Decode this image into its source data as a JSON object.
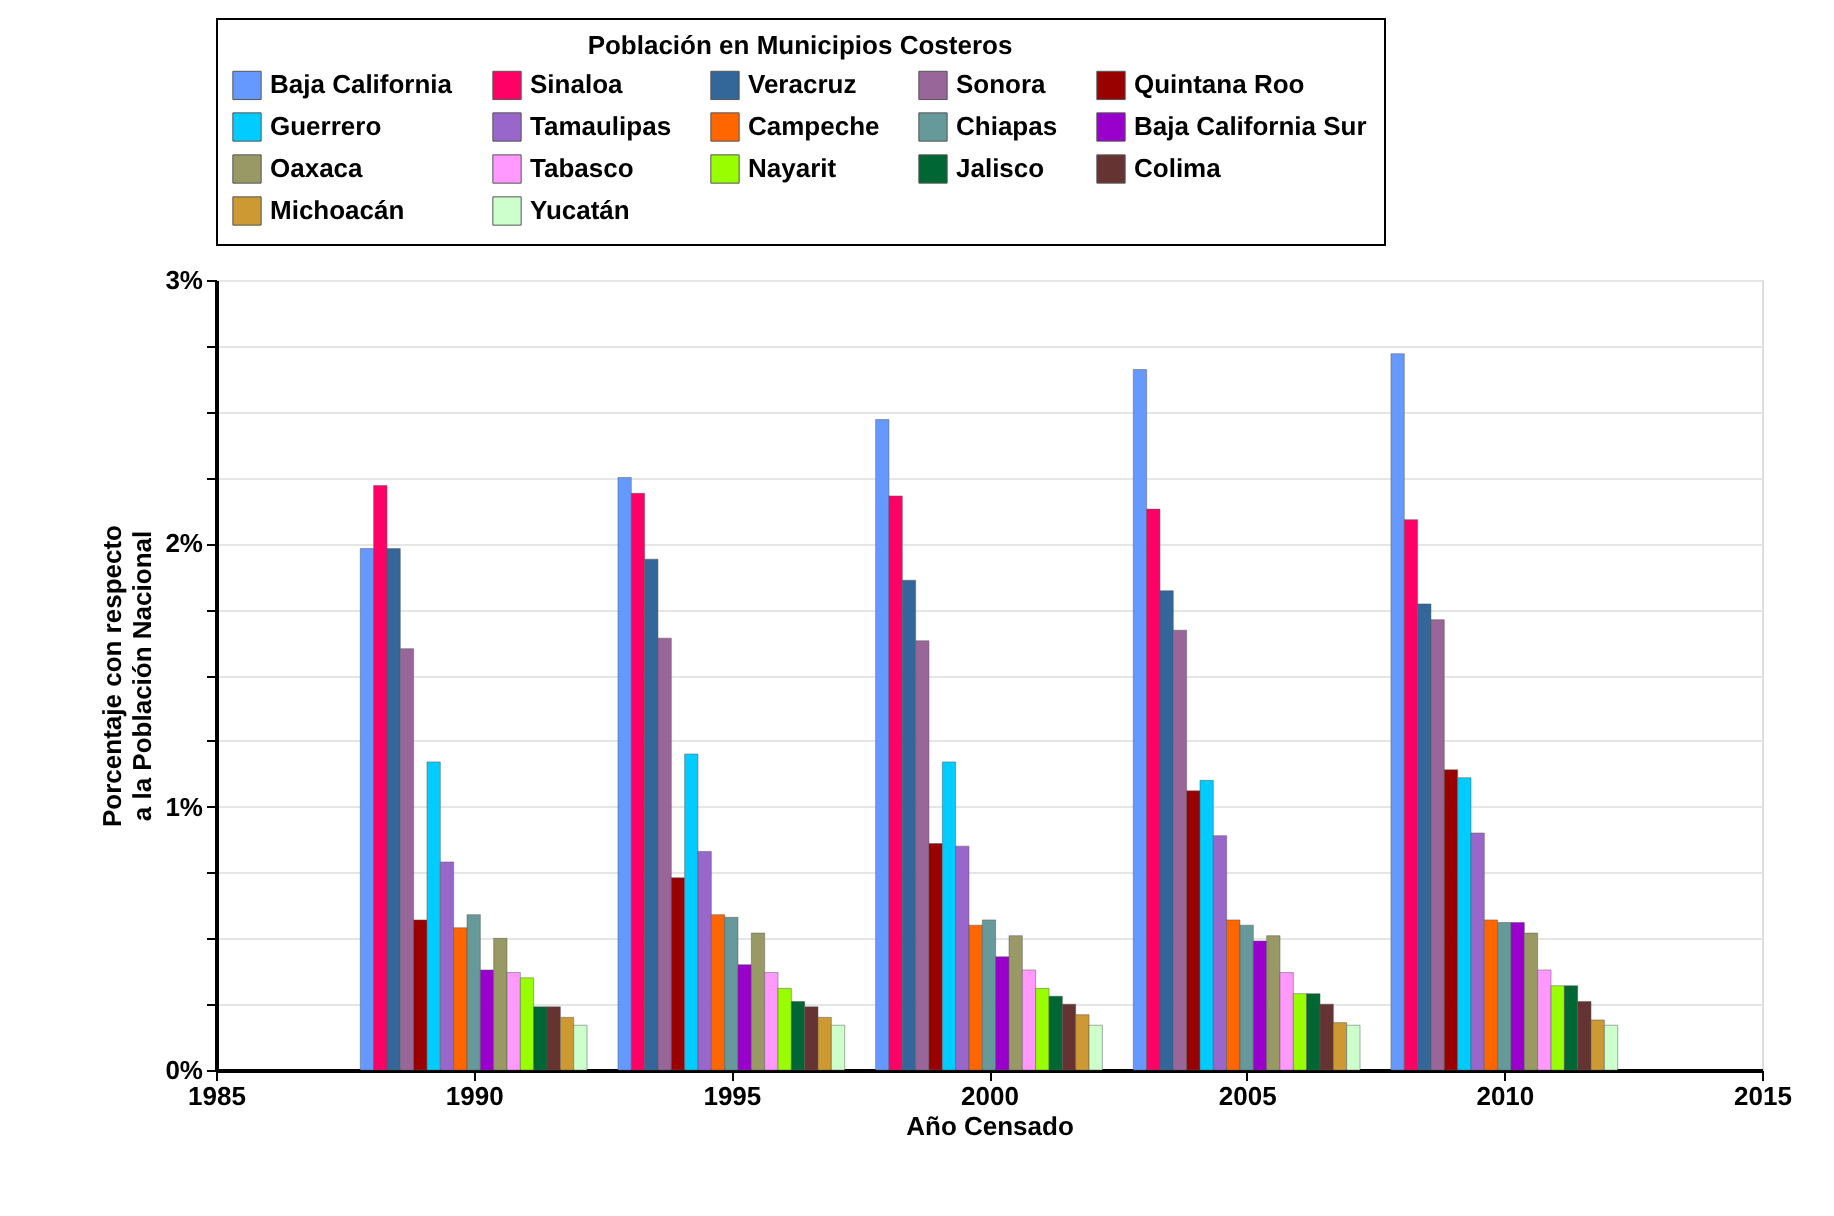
{
  "chart_data": {
    "type": "bar",
    "xlabel": "Año Censado",
    "ylabel": "Porcentaje con respecto\na la Población Nacional",
    "legend_title": "Población en Municipios Costeros",
    "legend": "top",
    "x": [
      1990,
      1995,
      2000,
      2005,
      2010
    ],
    "xlim": [
      1985,
      2015
    ],
    "xticks": [
      1985,
      1990,
      1995,
      2000,
      2005,
      2010,
      2015
    ],
    "ylim": [
      0,
      3
    ],
    "yticks": [
      {
        "value": 0,
        "label": "0%"
      },
      {
        "value": 0.25,
        "label": null
      },
      {
        "value": 0.5,
        "label": null
      },
      {
        "value": 0.75,
        "label": null
      },
      {
        "value": 1,
        "label": "1%"
      },
      {
        "value": 1.25,
        "label": null
      },
      {
        "value": 1.5,
        "label": null
      },
      {
        "value": 1.75,
        "label": null
      },
      {
        "value": 2,
        "label": "2%"
      },
      {
        "value": 2.25,
        "label": null
      },
      {
        "value": 2.5,
        "label": null
      },
      {
        "value": 2.75,
        "label": null
      },
      {
        "value": 3,
        "label": "3%"
      }
    ],
    "grid": "y",
    "series": [
      {
        "name": "Baja California",
        "color": "#6699ff",
        "values": [
          1.98,
          2.25,
          2.47,
          2.66,
          2.72
        ]
      },
      {
        "name": "Sinaloa",
        "color": "#ff0066",
        "values": [
          2.22,
          2.19,
          2.18,
          2.13,
          2.09
        ]
      },
      {
        "name": "Veracruz",
        "color": "#336699",
        "values": [
          1.98,
          1.94,
          1.86,
          1.82,
          1.77
        ]
      },
      {
        "name": "Sonora",
        "color": "#996699",
        "values": [
          1.6,
          1.64,
          1.63,
          1.67,
          1.71
        ]
      },
      {
        "name": "Quintana Roo",
        "color": "#990000",
        "values": [
          0.57,
          0.73,
          0.86,
          1.06,
          1.14
        ]
      },
      {
        "name": "Guerrero",
        "color": "#00ccff",
        "values": [
          1.17,
          1.2,
          1.17,
          1.1,
          1.11
        ]
      },
      {
        "name": "Tamaulipas",
        "color": "#9966cc",
        "values": [
          0.79,
          0.83,
          0.85,
          0.89,
          0.9
        ]
      },
      {
        "name": "Campeche",
        "color": "#ff6600",
        "values": [
          0.54,
          0.59,
          0.55,
          0.57,
          0.57
        ]
      },
      {
        "name": "Chiapas",
        "color": "#669999",
        "values": [
          0.59,
          0.58,
          0.57,
          0.55,
          0.56
        ]
      },
      {
        "name": "Baja California Sur",
        "color": "#9900cc",
        "values": [
          0.38,
          0.4,
          0.43,
          0.49,
          0.56
        ]
      },
      {
        "name": "Oaxaca",
        "color": "#999966",
        "values": [
          0.5,
          0.52,
          0.51,
          0.51,
          0.52
        ]
      },
      {
        "name": "Tabasco",
        "color": "#ff99ff",
        "values": [
          0.37,
          0.37,
          0.38,
          0.37,
          0.38
        ]
      },
      {
        "name": "Nayarit",
        "color": "#99ff00",
        "values": [
          0.35,
          0.31,
          0.31,
          0.29,
          0.32
        ]
      },
      {
        "name": "Jalisco",
        "color": "#006633",
        "values": [
          0.24,
          0.26,
          0.28,
          0.29,
          0.32
        ]
      },
      {
        "name": "Colima",
        "color": "#663333",
        "values": [
          0.24,
          0.24,
          0.25,
          0.25,
          0.26
        ]
      },
      {
        "name": "Michoacán",
        "color": "#cc9933",
        "values": [
          0.2,
          0.2,
          0.21,
          0.18,
          0.19
        ]
      },
      {
        "name": "Yucatán",
        "color": "#ccffcc",
        "values": [
          0.17,
          0.17,
          0.17,
          0.17,
          0.17
        ]
      }
    ]
  }
}
